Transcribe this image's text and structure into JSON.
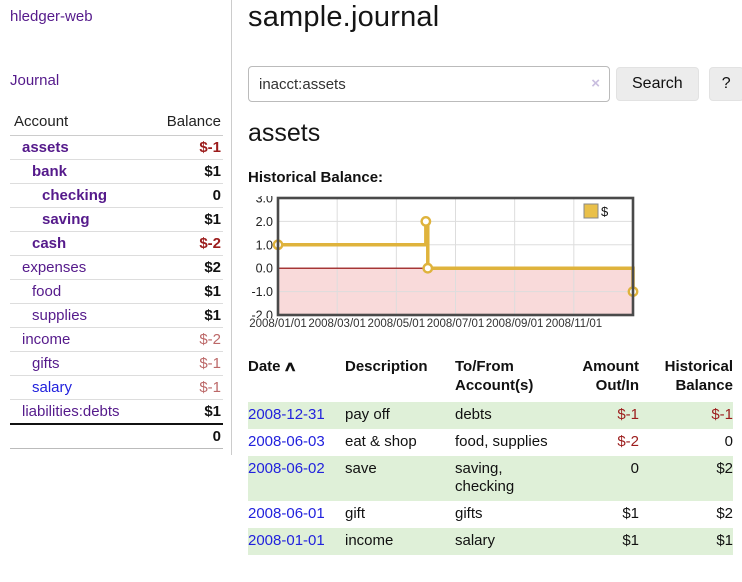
{
  "app": {
    "brand": "hledger-web"
  },
  "sidebar": {
    "nav": {
      "journal_label": "Journal"
    },
    "accounts_table": {
      "headers": {
        "account": "Account",
        "balance": "Balance"
      },
      "rows": [
        {
          "name": "assets",
          "balance": "$-1",
          "depth": 0,
          "bold": true
        },
        {
          "name": "bank",
          "balance": "$1",
          "depth": 1,
          "bold": true
        },
        {
          "name": "checking",
          "balance": "0",
          "depth": 2,
          "bold": true
        },
        {
          "name": "saving",
          "balance": "$1",
          "depth": 2,
          "bold": true
        },
        {
          "name": "cash",
          "balance": "$-2",
          "depth": 1,
          "bold": true
        },
        {
          "name": "expenses",
          "balance": "$2",
          "depth": 0,
          "bold": false
        },
        {
          "name": "food",
          "balance": "$1",
          "depth": 1,
          "bold": false
        },
        {
          "name": "supplies",
          "balance": "$1",
          "depth": 1,
          "bold": false
        },
        {
          "name": "income",
          "balance": "$-2",
          "depth": 0,
          "bold": false
        },
        {
          "name": "gifts",
          "balance": "$-1",
          "depth": 1,
          "bold": false
        },
        {
          "name": "salary",
          "balance": "$-1",
          "depth": 1,
          "bold": false,
          "link_style": "blue"
        },
        {
          "name": "liabilities:debts",
          "balance": "$1",
          "depth": 0,
          "bold": false
        }
      ],
      "total": "0"
    }
  },
  "header": {
    "title": "sample.journal"
  },
  "search": {
    "value": "inacct:assets",
    "clear_icon": "×",
    "button_label": "Search",
    "help_label": "?"
  },
  "main": {
    "account_heading": "assets",
    "chart_heading": "Historical Balance:"
  },
  "chart_data": {
    "type": "line",
    "step": true,
    "title": "Historical Balance",
    "series": [
      {
        "name": "$",
        "color": "#dfb33c",
        "points": [
          {
            "date": "2008-01-01",
            "value": 1
          },
          {
            "date": "2008-06-01",
            "value": 2
          },
          {
            "date": "2008-06-03",
            "value": 0
          },
          {
            "date": "2008-12-31",
            "value": -1
          }
        ]
      }
    ],
    "ylim": [
      -2,
      3
    ],
    "yticks": [
      "3.0",
      "2.0",
      "1.0",
      "0.0",
      "-1.0",
      "-2.0"
    ],
    "xticks": [
      "2008/01/01",
      "2008/03/01",
      "2008/05/01",
      "2008/07/01",
      "2008/09/01",
      "2008/11/01"
    ],
    "x_range": [
      "2008-01-01",
      "2008-12-31"
    ],
    "grid": true,
    "legend_position": "top-right",
    "colors": {
      "negative_region": "#f9dada",
      "zero_line": "#8b0000",
      "gridline": "#ddd",
      "border": "#4a4a4a",
      "legend_fill": "#e9c04a"
    }
  },
  "register_table": {
    "sort_icon": "∧",
    "headers": [
      {
        "label": "Date",
        "sortable": true,
        "align": "left"
      },
      {
        "label": "Description",
        "align": "left"
      },
      {
        "label": "To/From Account(s)",
        "align": "left"
      },
      {
        "label": "Amount Out/In",
        "align": "right"
      },
      {
        "label": "Historical Balance",
        "align": "right"
      }
    ],
    "rows": [
      {
        "date": "2008-12-31",
        "description": "pay off",
        "accounts": "debts",
        "amount": "$-1",
        "balance": "$-1"
      },
      {
        "date": "2008-06-03",
        "description": "eat & shop",
        "accounts": "food, supplies",
        "amount": "$-2",
        "balance": "0"
      },
      {
        "date": "2008-06-02",
        "description": "save",
        "accounts": "saving, checking",
        "amount": "0",
        "balance": "$2"
      },
      {
        "date": "2008-06-01",
        "description": "gift",
        "accounts": "gifts",
        "amount": "$1",
        "balance": "$2"
      },
      {
        "date": "2008-01-01",
        "description": "income",
        "accounts": "salary",
        "amount": "$1",
        "balance": "$1"
      }
    ]
  }
}
